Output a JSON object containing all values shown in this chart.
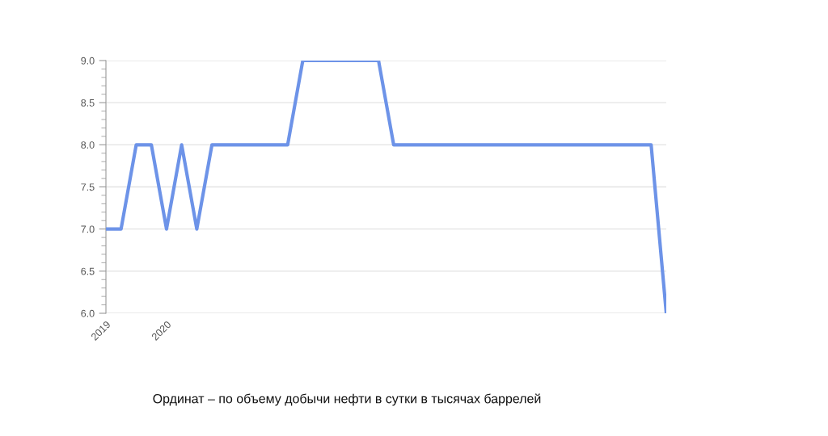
{
  "chart_data": {
    "type": "line",
    "categories": [
      "2019",
      null,
      null,
      null,
      "2020",
      null,
      null,
      null,
      null,
      null,
      null,
      null,
      null,
      null,
      null,
      null,
      null,
      null,
      null,
      null,
      null,
      null,
      null,
      null,
      null,
      null,
      null,
      null,
      null,
      null,
      null,
      null,
      null,
      null,
      null,
      null,
      null,
      null
    ],
    "series": [
      {
        "color": "#6d93e8",
        "values": [
          7,
          7,
          8,
          8,
          7,
          8,
          7,
          8,
          8,
          8,
          8,
          8,
          8,
          9,
          9,
          9,
          9,
          9,
          9,
          8,
          8,
          8,
          8,
          8,
          8,
          8,
          8,
          8,
          8,
          8,
          8,
          8,
          8,
          8,
          8,
          8,
          8,
          6
        ]
      }
    ],
    "ylim": [
      6,
      9
    ],
    "yticks": [
      {
        "value": 6,
        "label": "6.0"
      },
      {
        "value": 6.5,
        "label": "6.5"
      },
      {
        "value": 7,
        "label": "7.0"
      },
      {
        "value": 7.5,
        "label": "7.5"
      },
      {
        "value": 8,
        "label": "8.0"
      },
      {
        "value": 8.5,
        "label": "8.5"
      },
      {
        "value": 9,
        "label": "9.0"
      }
    ],
    "grid": "y",
    "annotations": [
      "Ординат – по объему добычи нефти в сутки в тысячах баррелей"
    ]
  }
}
